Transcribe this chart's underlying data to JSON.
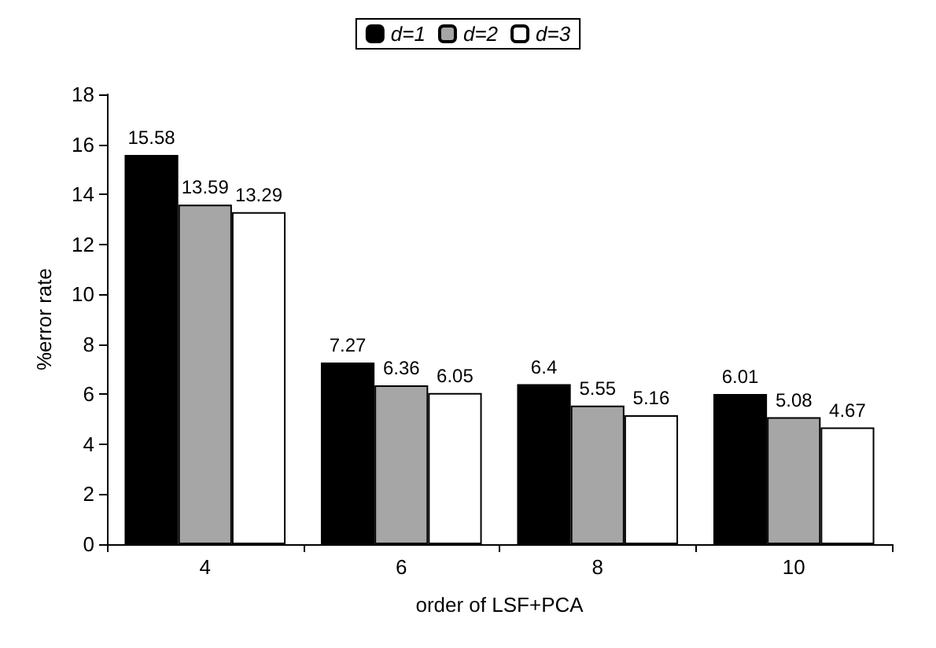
{
  "chart_data": {
    "type": "bar",
    "xlabel": "order of LSF+PCA",
    "ylabel": "%error rate",
    "categories": [
      "4",
      "6",
      "8",
      "10"
    ],
    "series": [
      {
        "name": "d=1",
        "color": "#000000",
        "values": [
          15.58,
          7.27,
          6.4,
          6.01
        ]
      },
      {
        "name": "d=2",
        "color": "#a6a6a6",
        "values": [
          13.59,
          6.36,
          5.55,
          5.08
        ]
      },
      {
        "name": "d=3",
        "color": "#ffffff",
        "values": [
          13.29,
          6.05,
          5.16,
          4.67
        ]
      }
    ],
    "ylim": [
      0,
      18
    ],
    "yticks": [
      0,
      2,
      4,
      6,
      8,
      10,
      12,
      14,
      16,
      18
    ],
    "grid": false,
    "legend": "top",
    "data_labels": true
  }
}
